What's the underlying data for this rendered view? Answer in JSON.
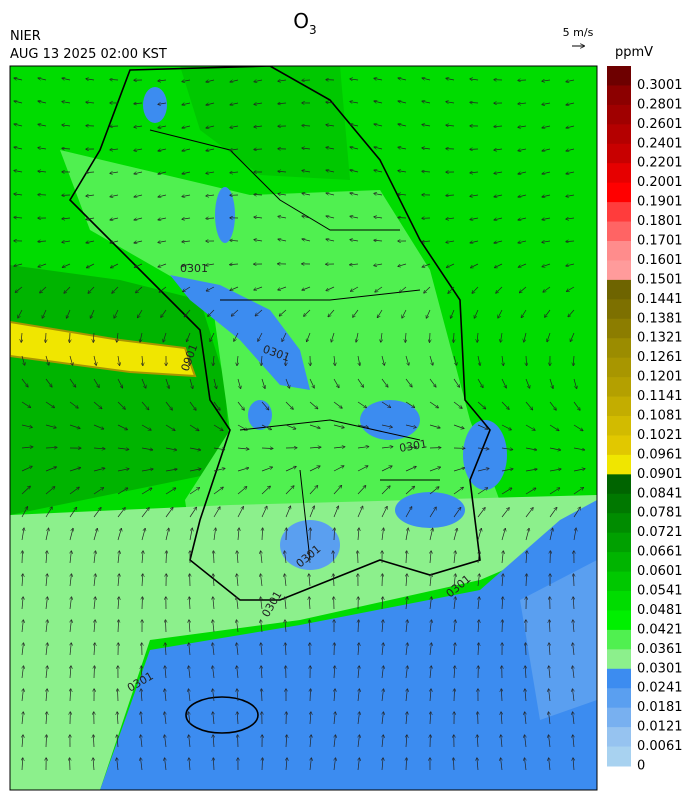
{
  "header": {
    "title": {
      "base": "O",
      "sub": "3"
    },
    "source": "NIER",
    "datetime": "AUG 13 2025 02:00 KST",
    "vector_scale": "5 m/s"
  },
  "colorbar": {
    "unit": "ppmV",
    "labels": [
      "0.3001",
      "0.2801",
      "0.2601",
      "0.2401",
      "0.2201",
      "0.2001",
      "0.1901",
      "0.1801",
      "0.1701",
      "0.1601",
      "0.1501",
      "0.1441",
      "0.1381",
      "0.1321",
      "0.1261",
      "0.1201",
      "0.1141",
      "0.1081",
      "0.1021",
      "0.0961",
      "0.0901",
      "0.0841",
      "0.0781",
      "0.0721",
      "0.0661",
      "0.0601",
      "0.0541",
      "0.0481",
      "0.0421",
      "0.0361",
      "0.0301",
      "0.0241",
      "0.0181",
      "0.0121",
      "0.0061",
      "0"
    ],
    "colors": [
      "#6e0000",
      "#8c0000",
      "#a00000",
      "#b40000",
      "#c80000",
      "#e60000",
      "#ff0000",
      "#ff3c3c",
      "#ff6464",
      "#ff8c8c",
      "#ff9b9b",
      "#6e6400",
      "#7d7000",
      "#8c7d00",
      "#9b8c00",
      "#a89600",
      "#b4a000",
      "#c3ad00",
      "#d2bb00",
      "#e1c800",
      "#f0e600",
      "#006400",
      "#007800",
      "#008c00",
      "#00a000",
      "#00b400",
      "#00c800",
      "#00dc00",
      "#00f000",
      "#50f050",
      "#8cf08c",
      "#3c8cf0",
      "#5a9ff0",
      "#78b0f0",
      "#96c3f0",
      "#a8d2f0"
    ]
  },
  "map": {
    "contour_labels": [
      "0301",
      "0901",
      "0301",
      "0301",
      "0301",
      "0301",
      "0301",
      "0301"
    ]
  }
}
